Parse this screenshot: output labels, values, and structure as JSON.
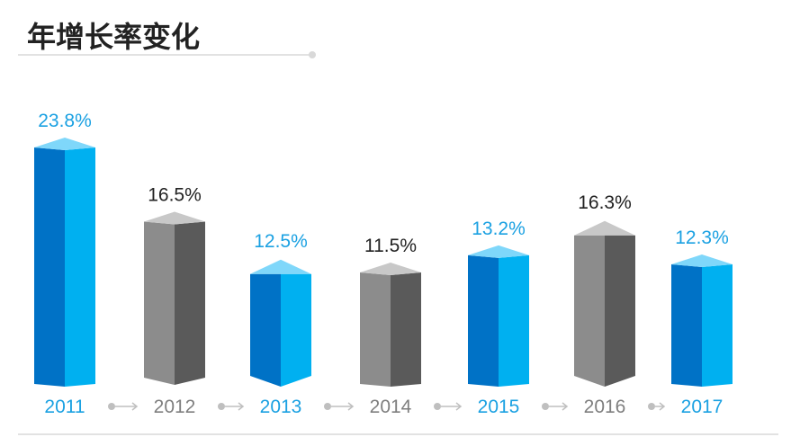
{
  "chart_data": {
    "type": "bar",
    "title": "年增长率变化",
    "categories": [
      "2011",
      "2012",
      "2013",
      "2014",
      "2015",
      "2016",
      "2017"
    ],
    "series": [
      {
        "values": [
          23.8,
          16.5,
          12.5,
          11.5,
          13.2,
          16.3,
          12.3
        ],
        "labels": [
          "23.8%",
          "16.5%",
          "12.5%",
          "11.5%",
          "13.2%",
          "16.3%",
          "12.3%"
        ]
      }
    ],
    "styles": [
      "blue",
      "gray",
      "blue",
      "gray",
      "blue",
      "gray",
      "blue"
    ],
    "xlabel": "",
    "ylabel": "",
    "grid": false,
    "colors": {
      "blue_front": "#0072C6",
      "blue_side": "#00B0F0",
      "blue_top": "#7FD7FA",
      "gray_front": "#8C8C8C",
      "gray_side": "#5A5A5A",
      "gray_top": "#C8C8C8",
      "blue_text": "#1BA1E2",
      "gray_text": "#7F7F7F",
      "dark_text": "#222222",
      "arrow": "#BFBFBF"
    }
  }
}
